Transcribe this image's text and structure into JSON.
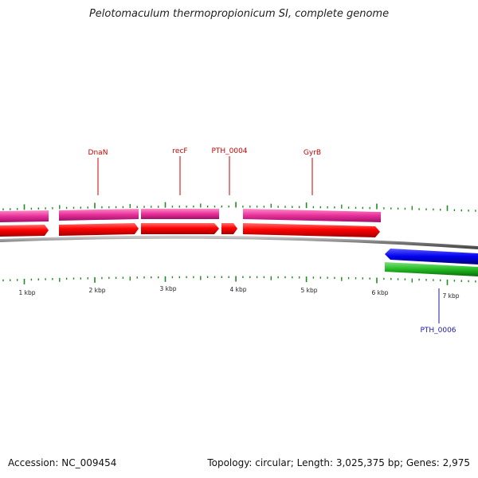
{
  "title": "Pelotomaculum thermopropionicum SI, complete genome",
  "accession_label": "Accession:",
  "accession": "NC_009454",
  "topology_label": "Topology:",
  "topology": "circular",
  "length_label": "Length:",
  "length": "3,025,375 bp",
  "genes_label": "Genes:",
  "genes": "2,975",
  "colors": {
    "forward_cds": "#ff0000",
    "forward_gene": "#e8309a",
    "reverse_cds": "#0000ee",
    "reverse_gene": "#22bb22",
    "backbone": "#8a8a8a",
    "tick": "#228b22",
    "label_forward": "#cc0000",
    "label_reverse": "#1a1aaa"
  },
  "scale": {
    "unit": "kbp",
    "labels": [
      "1 kbp",
      "2 kbp",
      "3 kbp",
      "4 kbp",
      "5 kbp",
      "6 kbp",
      "7 kbp"
    ]
  },
  "gene_labels": [
    {
      "text": "DnaN",
      "strand": "forward"
    },
    {
      "text": "recF",
      "strand": "forward"
    },
    {
      "text": "PTH_0004",
      "strand": "forward"
    },
    {
      "text": "GyrB",
      "strand": "forward"
    },
    {
      "text": "PTH_0006",
      "strand": "reverse"
    }
  ]
}
